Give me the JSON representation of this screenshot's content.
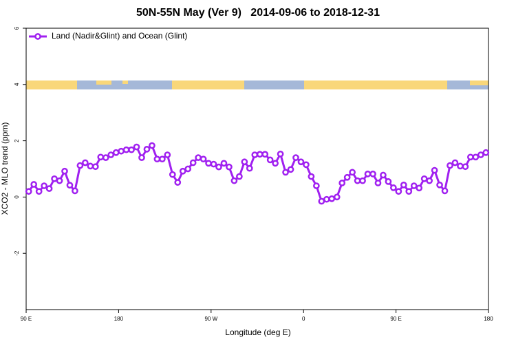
{
  "chart_data": {
    "type": "line",
    "title": "50N-55N May (Ver 9)   2014-09-06 to 2018-12-31",
    "x_label": "Longitude (deg E)",
    "y_label": "XCO2 - MLO trend (ppm)",
    "x": [
      92.5,
      97.5,
      102.5,
      107.5,
      112.5,
      117.5,
      122.5,
      127.5,
      132.5,
      137.5,
      142.5,
      147.5,
      152.5,
      157.5,
      162.5,
      167.5,
      172.5,
      177.5,
      182.5,
      187.5,
      192.5,
      197.5,
      202.5,
      207.5,
      212.5,
      217.5,
      222.5,
      227.5,
      232.5,
      237.5,
      242.5,
      247.5,
      252.5,
      257.5,
      262.5,
      267.5,
      272.5,
      277.5,
      282.5,
      287.5,
      292.5,
      297.5,
      302.5,
      307.5,
      312.5,
      317.5,
      322.5,
      327.5,
      332.5,
      337.5,
      342.5,
      347.5,
      352.5,
      357.5,
      362.5,
      367.5,
      372.5,
      377.5,
      382.5,
      387.5,
      392.5,
      397.5,
      402.5,
      407.5,
      412.5,
      417.5,
      422.5,
      427.5,
      432.5,
      437.5,
      442.5,
      447.5,
      452.5,
      457.5,
      462.5,
      467.5,
      472.5,
      477.5,
      482.5,
      487.5,
      492.5,
      497.5,
      502.5,
      507.5,
      512.5,
      517.5,
      522.5,
      527.5,
      532.5,
      537.5
    ],
    "series": [
      {
        "name": "Land (Nadir&Glint) and Ocean (Glint)",
        "color": "#a020f0",
        "values": [
          0.2,
          0.45,
          0.2,
          0.4,
          0.3,
          0.65,
          0.58,
          0.92,
          0.42,
          0.22,
          1.12,
          1.22,
          1.1,
          1.08,
          1.42,
          1.4,
          1.5,
          1.58,
          1.63,
          1.68,
          1.68,
          1.78,
          1.4,
          1.7,
          1.83,
          1.35,
          1.35,
          1.5,
          0.8,
          0.52,
          0.92,
          1.0,
          1.22,
          1.4,
          1.35,
          1.2,
          1.17,
          1.07,
          1.2,
          1.07,
          0.58,
          0.73,
          1.25,
          1.02,
          1.5,
          1.52,
          1.52,
          1.32,
          1.2,
          1.53,
          0.88,
          0.98,
          1.4,
          1.25,
          1.15,
          0.73,
          0.4,
          -0.15,
          -0.08,
          -0.06,
          0,
          0.5,
          0.7,
          0.88,
          0.58,
          0.58,
          0.82,
          0.82,
          0.5,
          0.78,
          0.55,
          0.33,
          0.2,
          0.43,
          0.2,
          0.4,
          0.32,
          0.65,
          0.58,
          0.95,
          0.43,
          0.22,
          1.12,
          1.22,
          1.1,
          1.08,
          1.42,
          1.42,
          1.5,
          1.58
        ]
      }
    ],
    "xlim": [
      90,
      540
    ],
    "xticks": [
      {
        "value": 90,
        "label": "90 E"
      },
      180,
      {
        "value": 270,
        "label": "90 W"
      },
      {
        "value": 360,
        "label": "0"
      },
      {
        "value": 450,
        "label": "90 E"
      },
      {
        "value": 540,
        "label": "180"
      }
    ],
    "ylim": [
      -4,
      6
    ],
    "yticks": [
      -2,
      0,
      2,
      4,
      6
    ],
    "legend": "top-left"
  }
}
